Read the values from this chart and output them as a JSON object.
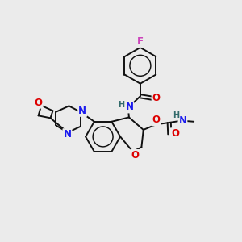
{
  "bg_color": "#ebebeb",
  "fig_size": [
    3.0,
    3.0
  ],
  "dpi": 100,
  "atom_colors": {
    "N": "#1a1aee",
    "O": "#dd0000",
    "F": "#cc44bb",
    "C": "#111111",
    "H": "#336b6b"
  },
  "bond_color": "#111111",
  "bond_width": 1.4,
  "font_size_atoms": 8.5,
  "font_size_small": 7.0,
  "xlim": [
    0.0,
    10.0
  ],
  "ylim": [
    1.5,
    9.5
  ]
}
